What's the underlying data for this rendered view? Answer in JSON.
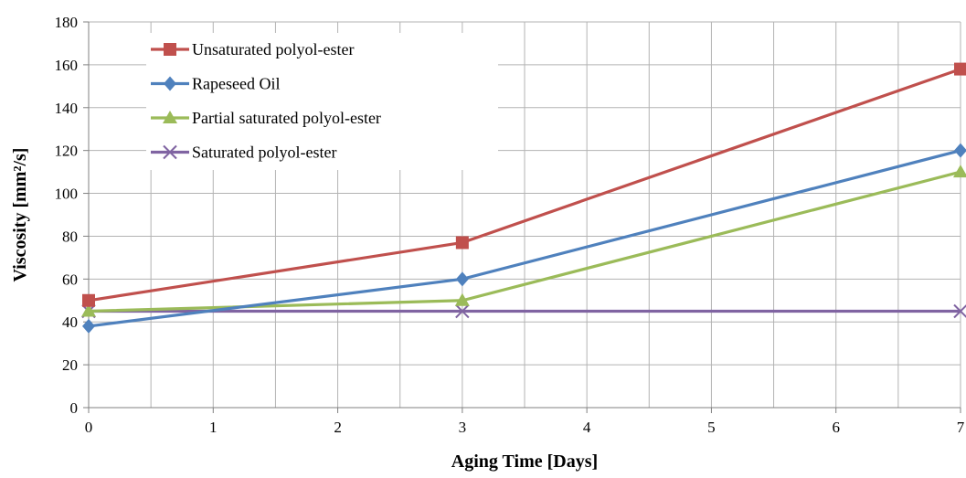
{
  "chart_data": {
    "type": "line",
    "xlabel": "Aging Time  [Days]",
    "ylabel": "Viscosity  [mm²/s]",
    "xlim": [
      0,
      7
    ],
    "ylim": [
      0,
      180
    ],
    "xticks": [
      0,
      1,
      2,
      3,
      4,
      5,
      6,
      7
    ],
    "yticks": [
      0,
      20,
      40,
      60,
      80,
      100,
      120,
      140,
      160,
      180
    ],
    "x_minor_step": 0.5,
    "grid": true,
    "legend_position": "top-left",
    "series": [
      {
        "name": "Unsaturated polyol-ester",
        "color": "#C0504D",
        "marker": "square",
        "x": [
          0,
          3,
          7
        ],
        "y": [
          50,
          77,
          158
        ]
      },
      {
        "name": "Rapeseed Oil",
        "color": "#4F81BD",
        "marker": "diamond",
        "x": [
          0,
          3,
          7
        ],
        "y": [
          38,
          60,
          120
        ]
      },
      {
        "name": "Partial saturated polyol-ester",
        "color": "#9BBB59",
        "marker": "triangle",
        "x": [
          0,
          3,
          7
        ],
        "y": [
          45,
          50,
          110
        ]
      },
      {
        "name": "Saturated polyol-ester",
        "color": "#8064A2",
        "marker": "x",
        "x": [
          0,
          3,
          7
        ],
        "y": [
          45,
          45,
          45
        ]
      }
    ]
  }
}
